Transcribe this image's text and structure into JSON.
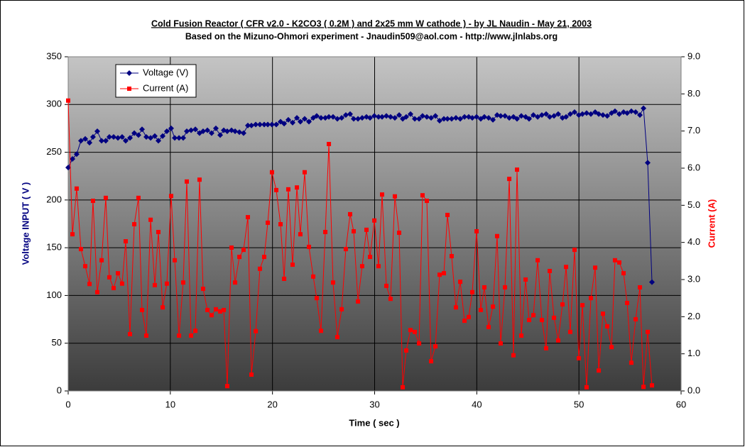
{
  "chart_data": {
    "type": "line",
    "title": "Cold Fusion Reactor ( CFR v2.0 - K2CO3 ( 0.2M ) and 2x25 mm W cathode ) - by JL Naudin - May 21, 2003",
    "subtitle": "Based on the Mizuno-Ohmori experiment - Jnaudin509@aol.com - http://www.jlnlabs.org",
    "xlabel": "Time ( sec )",
    "ylabel": "Voltage INPUT ( V )",
    "y2label": "Current (A)",
    "xlim": [
      0,
      60
    ],
    "xticks": [
      0,
      10,
      20,
      30,
      40,
      50,
      60
    ],
    "ylim": [
      0,
      350
    ],
    "yticks": [
      0,
      50,
      100,
      150,
      200,
      250,
      300,
      350
    ],
    "y2lim": [
      0,
      9
    ],
    "y2ticks": [
      {
        "value": 0,
        "label": "0.0"
      },
      {
        "value": 1,
        "label": "1.0"
      },
      {
        "value": 2,
        "label": "2.0"
      },
      {
        "value": 3,
        "label": "3.0"
      },
      {
        "value": 4,
        "label": "4.0"
      },
      {
        "value": 5,
        "label": "5.0"
      },
      {
        "value": 6,
        "label": "6.0"
      },
      {
        "value": 7,
        "label": "7.0"
      },
      {
        "value": 8,
        "label": "8.0"
      },
      {
        "value": 9,
        "label": "9.0"
      }
    ],
    "grid": true,
    "legend": "upper left",
    "x": [
      0,
      0.42,
      0.83,
      1.25,
      1.67,
      2.09,
      2.43,
      2.85,
      3.27,
      3.68,
      4.03,
      4.45,
      4.87,
      5.28,
      5.63,
      6.05,
      6.47,
      6.88,
      7.23,
      7.65,
      8.07,
      8.48,
      8.83,
      9.25,
      9.66,
      10.08,
      10.43,
      10.85,
      11.26,
      11.61,
      12.03,
      12.45,
      12.86,
      13.21,
      13.63,
      14.04,
      14.46,
      14.88,
      15.23,
      15.57,
      15.99,
      16.34,
      16.76,
      17.17,
      17.59,
      17.94,
      18.36,
      18.77,
      19.19,
      19.54,
      19.95,
      20.37,
      20.79,
      21.14,
      21.55,
      21.97,
      22.39,
      22.73,
      23.15,
      23.57,
      23.99,
      24.33,
      24.75,
      25.17,
      25.52,
      25.93,
      26.35,
      26.77,
      27.18,
      27.6,
      27.95,
      28.37,
      28.78,
      29.2,
      29.55,
      29.97,
      30.38,
      30.73,
      31.15,
      31.56,
      31.98,
      32.4,
      32.75,
      33.09,
      33.51,
      33.93,
      34.35,
      34.69,
      35.11,
      35.53,
      35.95,
      36.36,
      36.78,
      37.13,
      37.54,
      37.96,
      38.38,
      38.8,
      39.21,
      39.56,
      39.98,
      40.39,
      40.74,
      41.16,
      41.58,
      41.99,
      42.34,
      42.76,
      43.18,
      43.59,
      43.94,
      44.36,
      44.78,
      45.12,
      45.54,
      45.96,
      46.37,
      46.79,
      47.14,
      47.56,
      47.97,
      48.39,
      48.74,
      49.15,
      49.57,
      49.99,
      50.34,
      50.75,
      51.17,
      51.59,
      51.94,
      52.35,
      52.77,
      53.19,
      53.53,
      53.95,
      54.37,
      54.72,
      55.13,
      55.55,
      55.97,
      56.32,
      56.73,
      57.15
    ],
    "series": [
      {
        "name": "Voltage (V)",
        "color": "#000080",
        "marker": "diamond",
        "values": [
          234,
          243,
          248,
          262,
          264,
          260,
          266,
          272,
          262,
          262,
          266,
          266,
          265,
          266,
          262,
          265,
          270,
          268,
          274,
          266,
          265,
          267,
          262,
          267,
          272,
          275,
          265,
          265,
          265,
          272,
          273,
          274,
          270,
          272,
          273,
          270,
          275,
          268,
          273,
          272,
          273,
          272,
          271,
          270,
          278,
          278,
          279,
          279,
          279,
          279,
          279,
          279,
          282,
          280,
          284,
          281,
          286,
          282,
          285,
          282,
          286,
          288,
          286,
          286,
          287,
          287,
          285,
          286,
          289,
          290,
          285,
          285,
          286,
          287,
          286,
          288,
          287,
          287,
          288,
          287,
          286,
          289,
          285,
          287,
          290,
          285,
          285,
          288,
          287,
          286,
          288,
          283,
          285,
          285,
          285,
          286,
          285,
          287,
          287,
          286,
          287,
          285,
          287,
          286,
          284,
          289,
          288,
          288,
          286,
          287,
          285,
          288,
          287,
          285,
          289,
          287,
          289,
          290,
          287,
          288,
          290,
          286,
          287,
          290,
          292,
          289,
          290,
          291,
          290,
          292,
          290,
          289,
          288,
          291,
          293,
          290,
          292,
          291,
          293,
          292,
          289,
          296,
          239,
          114
        ]
      },
      {
        "name": "Current (A)",
        "color": "#ff0000",
        "marker": "square",
        "axis": "y2",
        "values": [
          7.82,
          4.22,
          5.45,
          3.82,
          3.36,
          2.88,
          5.12,
          2.66,
          3.52,
          5.2,
          3.06,
          2.77,
          3.17,
          2.89,
          4.03,
          1.53,
          4.49,
          5.2,
          2.18,
          1.49,
          4.61,
          2.85,
          4.28,
          2.25,
          2.89,
          5.25,
          3.52,
          1.49,
          2.92,
          5.64,
          1.49,
          1.62,
          5.69,
          2.75,
          2.18,
          2.04,
          2.2,
          2.14,
          2.18,
          0.13,
          3.86,
          2.92,
          3.61,
          3.8,
          4.68,
          0.44,
          1.61,
          3.29,
          3.61,
          4.53,
          5.89,
          5.41,
          4.49,
          3.02,
          5.43,
          3.4,
          5.48,
          4.22,
          5.89,
          3.88,
          3.08,
          2.5,
          1.62,
          4.28,
          6.65,
          2.92,
          1.45,
          2.2,
          3.82,
          4.76,
          4.3,
          2.41,
          3.36,
          4.34,
          3.61,
          4.59,
          3.36,
          5.29,
          2.83,
          2.48,
          5.24,
          4.26,
          0.1,
          1.09,
          1.64,
          1.59,
          1.28,
          5.27,
          5.12,
          0.8,
          1.2,
          3.13,
          3.17,
          4.74,
          3.63,
          2.25,
          2.94,
          1.89,
          1.99,
          2.66,
          4.3,
          2.18,
          2.79,
          1.72,
          2.27,
          4.17,
          1.28,
          2.79,
          5.71,
          0.96,
          5.96,
          1.49,
          3.0,
          1.91,
          2.04,
          3.52,
          1.91,
          1.15,
          3.23,
          1.97,
          1.36,
          2.33,
          3.34,
          1.59,
          3.8,
          0.88,
          2.31,
          0.1,
          2.5,
          3.32,
          0.55,
          2.08,
          1.74,
          1.18,
          3.52,
          3.46,
          3.17,
          2.37,
          0.76,
          1.93,
          2.79,
          0.11,
          1.59,
          0.15
        ]
      }
    ]
  }
}
